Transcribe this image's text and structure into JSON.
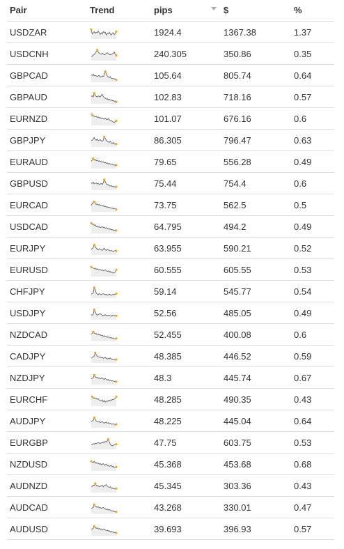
{
  "columns": {
    "pair": "Pair",
    "trend": "Trend",
    "pips": "pips",
    "usd": "$",
    "pct": "%"
  },
  "colors": {
    "sparkline": "#555555",
    "sparkline_fill": "#eeeeee",
    "marker": "#f5a623",
    "border": "#dddddd"
  },
  "rows": [
    {
      "pair": "USDZAR",
      "pips": "1924.4",
      "usd": "1367.38",
      "pct": "1.37",
      "trend": [
        0.8,
        0.4,
        0.5,
        0.6,
        0.45,
        0.55,
        0.5,
        0.65,
        0.5,
        0.35,
        0.5,
        0.4,
        0.6,
        0.5,
        0.55,
        0.3,
        0.45,
        0.4,
        0.55,
        0.4,
        0.3,
        0.45,
        0.5,
        0.35,
        0.4,
        0.6
      ]
    },
    {
      "pair": "USDCNH",
      "pips": "240.305",
      "usd": "350.86",
      "pct": "0.35",
      "trend": [
        0.3,
        0.35,
        0.45,
        0.5,
        0.6,
        0.75,
        0.9,
        0.7,
        0.6,
        0.55,
        0.5,
        0.6,
        0.55,
        0.45,
        0.5,
        0.6,
        0.65,
        0.55,
        0.5,
        0.45,
        0.5,
        0.55,
        0.6,
        0.7,
        0.5,
        0.4
      ]
    },
    {
      "pair": "GBPCAD",
      "pips": "105.64",
      "usd": "805.74",
      "pct": "0.64",
      "trend": [
        0.6,
        0.55,
        0.65,
        0.5,
        0.55,
        0.5,
        0.45,
        0.5,
        0.55,
        0.4,
        0.45,
        0.5,
        0.45,
        0.6,
        0.9,
        0.7,
        0.5,
        0.4,
        0.35,
        0.45,
        0.3,
        0.25,
        0.3,
        0.2,
        0.25,
        0.15
      ]
    },
    {
      "pair": "GBPAUD",
      "pips": "102.83",
      "usd": "718.16",
      "pct": "0.57",
      "trend": [
        0.6,
        0.65,
        0.55,
        0.9,
        0.7,
        0.6,
        0.55,
        0.65,
        0.6,
        0.55,
        0.7,
        0.8,
        0.6,
        0.5,
        0.45,
        0.35,
        0.4,
        0.3,
        0.35,
        0.25,
        0.3,
        0.2,
        0.25,
        0.15,
        0.2,
        0.1
      ]
    },
    {
      "pair": "EURNZD",
      "pips": "101.07",
      "usd": "676.16",
      "pct": "0.6",
      "trend": [
        0.85,
        0.9,
        0.75,
        0.8,
        0.7,
        0.75,
        0.65,
        0.7,
        0.6,
        0.65,
        0.55,
        0.6,
        0.55,
        0.5,
        0.6,
        0.5,
        0.45,
        0.55,
        0.45,
        0.4,
        0.35,
        0.3,
        0.25,
        0.2,
        0.3,
        0.35
      ]
    },
    {
      "pair": "GBPJPY",
      "pips": "86.305",
      "usd": "796.47",
      "pct": "0.63",
      "trend": [
        0.5,
        0.55,
        0.65,
        0.8,
        0.6,
        0.55,
        0.65,
        0.5,
        0.55,
        0.6,
        0.5,
        0.45,
        0.55,
        0.85,
        0.7,
        0.55,
        0.45,
        0.4,
        0.35,
        0.45,
        0.3,
        0.25,
        0.35,
        0.2,
        0.25,
        0.2
      ]
    },
    {
      "pair": "EURAUD",
      "pips": "79.65",
      "usd": "556.28",
      "pct": "0.49",
      "trend": [
        0.6,
        0.7,
        0.85,
        0.7,
        0.75,
        0.65,
        0.7,
        0.6,
        0.65,
        0.55,
        0.6,
        0.5,
        0.55,
        0.45,
        0.5,
        0.4,
        0.45,
        0.35,
        0.4,
        0.35,
        0.3,
        0.35,
        0.25,
        0.3,
        0.2,
        0.25
      ]
    },
    {
      "pair": "GBPUSD",
      "pips": "75.44",
      "usd": "754.4",
      "pct": "0.6",
      "trend": [
        0.6,
        0.55,
        0.65,
        0.5,
        0.55,
        0.6,
        0.5,
        0.55,
        0.45,
        0.5,
        0.55,
        0.45,
        0.6,
        0.9,
        0.7,
        0.5,
        0.4,
        0.45,
        0.35,
        0.3,
        0.35,
        0.25,
        0.3,
        0.25,
        0.2,
        0.25
      ]
    },
    {
      "pair": "EURCAD",
      "pips": "73.75",
      "usd": "562.5",
      "pct": "0.5",
      "trend": [
        0.5,
        0.7,
        0.75,
        0.85,
        0.7,
        0.6,
        0.65,
        0.55,
        0.6,
        0.5,
        0.55,
        0.45,
        0.5,
        0.4,
        0.45,
        0.35,
        0.4,
        0.3,
        0.35,
        0.3,
        0.25,
        0.3,
        0.2,
        0.25,
        0.2,
        0.15
      ]
    },
    {
      "pair": "USDCAD",
      "pips": "64.795",
      "usd": "494.2",
      "pct": "0.49",
      "trend": [
        0.85,
        0.75,
        0.8,
        0.65,
        0.7,
        0.55,
        0.6,
        0.5,
        0.55,
        0.45,
        0.5,
        0.55,
        0.45,
        0.5,
        0.4,
        0.45,
        0.35,
        0.4,
        0.3,
        0.35,
        0.25,
        0.3,
        0.2,
        0.25,
        0.15,
        0.2
      ]
    },
    {
      "pair": "EURJPY",
      "pips": "63.955",
      "usd": "590.21",
      "pct": "0.52",
      "trend": [
        0.45,
        0.5,
        0.6,
        0.85,
        0.7,
        0.55,
        0.45,
        0.4,
        0.5,
        0.45,
        0.4,
        0.35,
        0.45,
        0.55,
        0.4,
        0.35,
        0.45,
        0.4,
        0.35,
        0.3,
        0.35,
        0.3,
        0.25,
        0.3,
        0.35,
        0.3
      ]
    },
    {
      "pair": "EURUSD",
      "pips": "60.555",
      "usd": "605.55",
      "pct": "0.53",
      "trend": [
        0.8,
        0.75,
        0.7,
        0.65,
        0.7,
        0.6,
        0.65,
        0.55,
        0.6,
        0.55,
        0.5,
        0.55,
        0.45,
        0.5,
        0.55,
        0.45,
        0.4,
        0.45,
        0.35,
        0.4,
        0.3,
        0.35,
        0.25,
        0.3,
        0.35,
        0.55
      ]
    },
    {
      "pair": "CHFJPY",
      "pips": "59.14",
      "usd": "545.77",
      "pct": "0.54",
      "trend": [
        0.3,
        0.35,
        0.4,
        0.9,
        0.7,
        0.4,
        0.3,
        0.25,
        0.35,
        0.3,
        0.25,
        0.3,
        0.35,
        0.3,
        0.25,
        0.3,
        0.2,
        0.25,
        0.3,
        0.25,
        0.2,
        0.25,
        0.3,
        0.25,
        0.3,
        0.35
      ]
    },
    {
      "pair": "USDJPY",
      "pips": "52.56",
      "usd": "485.05",
      "pct": "0.49",
      "trend": [
        0.4,
        0.35,
        0.45,
        0.85,
        0.65,
        0.45,
        0.35,
        0.4,
        0.45,
        0.5,
        0.4,
        0.35,
        0.3,
        0.35,
        0.4,
        0.3,
        0.35,
        0.3,
        0.35,
        0.3,
        0.25,
        0.35,
        0.3,
        0.35,
        0.3,
        0.3
      ]
    },
    {
      "pair": "NZDCAD",
      "pips": "52.455",
      "usd": "400.08",
      "pct": "0.6",
      "trend": [
        0.6,
        0.65,
        0.8,
        0.7,
        0.6,
        0.65,
        0.55,
        0.6,
        0.5,
        0.55,
        0.45,
        0.5,
        0.4,
        0.45,
        0.35,
        0.4,
        0.3,
        0.35,
        0.3,
        0.25,
        0.3,
        0.2,
        0.25,
        0.2,
        0.15,
        0.2
      ]
    },
    {
      "pair": "CADJPY",
      "pips": "48.385",
      "usd": "446.52",
      "pct": "0.59",
      "trend": [
        0.4,
        0.45,
        0.5,
        0.55,
        0.85,
        0.7,
        0.55,
        0.5,
        0.45,
        0.5,
        0.4,
        0.45,
        0.35,
        0.4,
        0.45,
        0.35,
        0.3,
        0.35,
        0.3,
        0.4,
        0.3,
        0.25,
        0.3,
        0.25,
        0.2,
        0.25
      ]
    },
    {
      "pair": "NZDJPY",
      "pips": "48.3",
      "usd": "445.74",
      "pct": "0.67",
      "trend": [
        0.45,
        0.5,
        0.55,
        0.8,
        0.65,
        0.55,
        0.6,
        0.5,
        0.55,
        0.45,
        0.5,
        0.55,
        0.45,
        0.4,
        0.5,
        0.4,
        0.35,
        0.4,
        0.3,
        0.35,
        0.25,
        0.3,
        0.25,
        0.2,
        0.25,
        0.2
      ]
    },
    {
      "pair": "EURCHF",
      "pips": "48.285",
      "usd": "490.35",
      "pct": "0.43",
      "trend": [
        0.75,
        0.8,
        0.65,
        0.7,
        0.6,
        0.65,
        0.55,
        0.6,
        0.5,
        0.45,
        0.4,
        0.5,
        0.35,
        0.45,
        0.3,
        0.4,
        0.35,
        0.45,
        0.4,
        0.5,
        0.45,
        0.55,
        0.5,
        0.6,
        0.65,
        0.8
      ]
    },
    {
      "pair": "AUDJPY",
      "pips": "48.225",
      "usd": "445.04",
      "pct": "0.64",
      "trend": [
        0.5,
        0.55,
        0.6,
        0.85,
        0.7,
        0.55,
        0.5,
        0.45,
        0.5,
        0.4,
        0.45,
        0.5,
        0.4,
        0.35,
        0.4,
        0.45,
        0.35,
        0.4,
        0.3,
        0.35,
        0.3,
        0.25,
        0.3,
        0.25,
        0.2,
        0.25
      ]
    },
    {
      "pair": "EURGBP",
      "pips": "47.75",
      "usd": "603.75",
      "pct": "0.53",
      "trend": [
        0.35,
        0.4,
        0.45,
        0.4,
        0.5,
        0.45,
        0.5,
        0.55,
        0.5,
        0.45,
        0.55,
        0.5,
        0.6,
        0.55,
        0.65,
        0.6,
        0.7,
        0.85,
        0.6,
        0.4,
        0.3,
        0.25,
        0.3,
        0.35,
        0.4,
        0.4
      ]
    },
    {
      "pair": "NZDUSD",
      "pips": "45.368",
      "usd": "453.68",
      "pct": "0.68",
      "trend": [
        0.8,
        0.75,
        0.7,
        0.8,
        0.65,
        0.7,
        0.6,
        0.65,
        0.55,
        0.6,
        0.5,
        0.55,
        0.6,
        0.45,
        0.5,
        0.55,
        0.4,
        0.45,
        0.35,
        0.4,
        0.45,
        0.3,
        0.35,
        0.25,
        0.3,
        0.3
      ]
    },
    {
      "pair": "AUDNZD",
      "pips": "45.345",
      "usd": "303.36",
      "pct": "0.43",
      "trend": [
        0.45,
        0.5,
        0.6,
        0.55,
        0.75,
        0.6,
        0.5,
        0.55,
        0.45,
        0.5,
        0.55,
        0.6,
        0.45,
        0.55,
        0.6,
        0.65,
        0.5,
        0.45,
        0.4,
        0.45,
        0.35,
        0.3,
        0.35,
        0.25,
        0.3,
        0.3
      ]
    },
    {
      "pair": "AUDCAD",
      "pips": "43.268",
      "usd": "330.01",
      "pct": "0.47",
      "trend": [
        0.45,
        0.5,
        0.55,
        0.8,
        0.65,
        0.6,
        0.55,
        0.6,
        0.5,
        0.55,
        0.45,
        0.5,
        0.55,
        0.45,
        0.4,
        0.35,
        0.4,
        0.3,
        0.35,
        0.3,
        0.25,
        0.2,
        0.25,
        0.15,
        0.2,
        0.15
      ]
    },
    {
      "pair": "AUDUSD",
      "pips": "39.693",
      "usd": "396.93",
      "pct": "0.57",
      "trend": [
        0.5,
        0.55,
        0.6,
        0.8,
        0.7,
        0.6,
        0.65,
        0.55,
        0.6,
        0.5,
        0.55,
        0.45,
        0.5,
        0.55,
        0.45,
        0.4,
        0.45,
        0.35,
        0.4,
        0.3,
        0.35,
        0.25,
        0.3,
        0.2,
        0.25,
        0.2
      ]
    }
  ]
}
